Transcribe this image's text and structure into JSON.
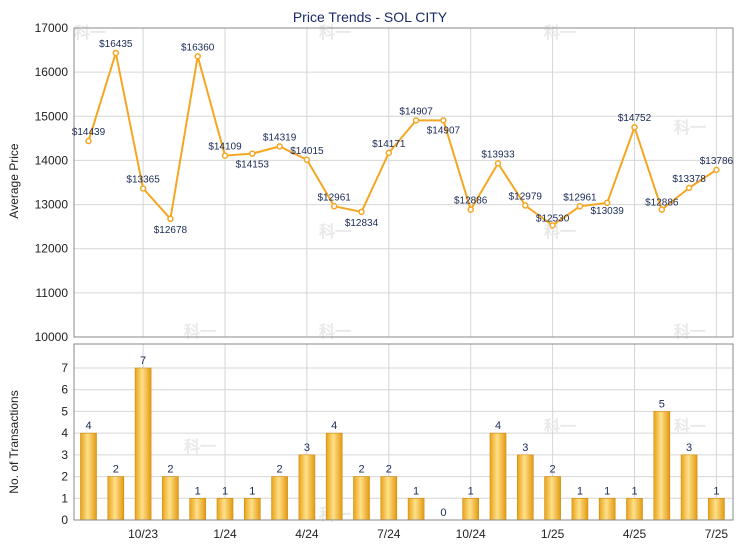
{
  "chart_data": [
    {
      "type": "line",
      "title": "Price Trends - SOL CITY",
      "ylabel": "Average Price",
      "ylim": [
        10000,
        17000
      ],
      "yticks": [
        10000,
        11000,
        12000,
        13000,
        14000,
        15000,
        16000,
        17000
      ],
      "grid": true,
      "color": "#F5A623",
      "x": [
        "8/23",
        "9/23",
        "10/23",
        "11/23",
        "12/23",
        "1/24",
        "2/24",
        "3/24",
        "4/24",
        "5/24",
        "6/24",
        "7/24",
        "8/24",
        "9/24",
        "10/24",
        "11/24",
        "12/24",
        "1/25",
        "2/25",
        "3/25",
        "4/25",
        "5/25",
        "6/25",
        "7/25"
      ],
      "values": [
        14439,
        16435,
        13365,
        12678,
        16360,
        14109,
        14153,
        14319,
        14015,
        12961,
        12834,
        14171,
        14907,
        14907,
        12886,
        13933,
        12979,
        12530,
        12961,
        13039,
        14752,
        12886,
        13378,
        13786
      ],
      "labels": [
        "$14439",
        "$16435",
        "$13365",
        "$12678",
        "$16360",
        "$14109",
        "$14153",
        "$14319",
        "$14015",
        "$12961",
        "$12834",
        "$14171",
        "$14907",
        "$14907",
        "$12886",
        "$13933",
        "$12979",
        "$12530",
        "$12961",
        "$13039",
        "$14752",
        "$12886",
        "$13378",
        "$13786"
      ],
      "xtick_labels": [
        "10/23",
        "1/24",
        "4/24",
        "7/24",
        "10/24",
        "1/25",
        "4/25",
        "7/25"
      ]
    },
    {
      "type": "bar",
      "ylabel": "No. of Transactions",
      "ylim": [
        0,
        7
      ],
      "yticks": [
        0,
        1,
        2,
        3,
        4,
        5,
        6,
        7
      ],
      "grid": true,
      "color": "#F5A623",
      "categories": [
        "8/23",
        "9/23",
        "10/23",
        "11/23",
        "12/23",
        "1/24",
        "2/24",
        "3/24",
        "4/24",
        "5/24",
        "6/24",
        "7/24",
        "8/24",
        "9/24",
        "10/24",
        "11/24",
        "12/24",
        "1/25",
        "2/25",
        "3/25",
        "4/25",
        "5/25",
        "6/25",
        "7/25"
      ],
      "values": [
        4,
        2,
        7,
        2,
        1,
        1,
        1,
        2,
        3,
        4,
        2,
        2,
        1,
        0,
        1,
        4,
        3,
        2,
        1,
        1,
        1,
        5,
        3,
        1
      ],
      "xtick_labels": [
        "10/23",
        "1/24",
        "4/24",
        "7/24",
        "10/24",
        "1/25",
        "4/25",
        "7/25"
      ]
    }
  ],
  "watermark": "科一"
}
